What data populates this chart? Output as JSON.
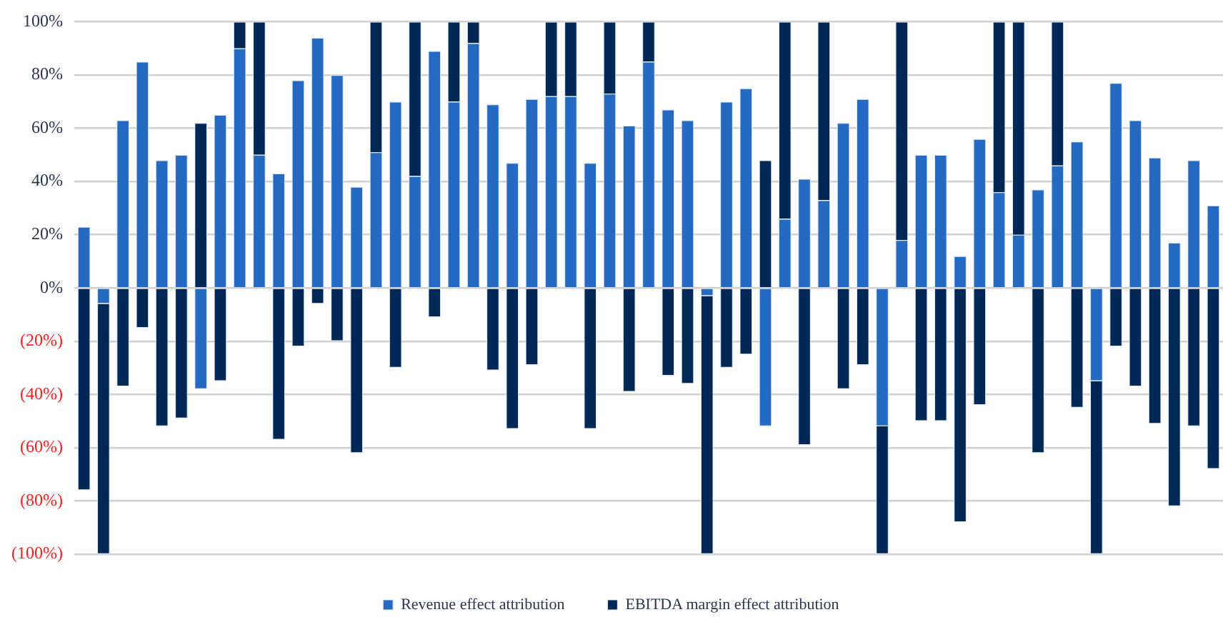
{
  "chart_data": {
    "type": "bar",
    "stacked": true,
    "categories": [
      null,
      null,
      null,
      null,
      null,
      null,
      null,
      null,
      null,
      null,
      null,
      null,
      null,
      null,
      null,
      null,
      null,
      null,
      null,
      null,
      null,
      null,
      null,
      null,
      null,
      null,
      null,
      null,
      null,
      null,
      null,
      null,
      null,
      null,
      null,
      null,
      null,
      null,
      null,
      null,
      null,
      null,
      null,
      null,
      null,
      null,
      null,
      null,
      null,
      null,
      null,
      null,
      null,
      null,
      null,
      null,
      null,
      null,
      null
    ],
    "series": [
      {
        "name": "Revenue effect attribution",
        "color": "#246ac2",
        "values": [
          23,
          -6,
          63,
          85,
          48,
          50,
          -38,
          65,
          90,
          50,
          43,
          78,
          94,
          80,
          38,
          51,
          70,
          42,
          89,
          70,
          92,
          69,
          47,
          71,
          72,
          72,
          47,
          73,
          61,
          85,
          67,
          63,
          -3,
          70,
          75,
          -52,
          26,
          41,
          33,
          62,
          71,
          -52,
          18,
          50,
          50,
          12,
          56,
          36,
          20,
          37,
          46,
          55,
          -35,
          77,
          63,
          49,
          17,
          48,
          31
        ]
      },
      {
        "name": "EBITDA margin effect attribution",
        "color": "#012854",
        "values": [
          -76,
          -94,
          -37,
          -15,
          -52,
          -49,
          62,
          -35,
          10,
          50,
          -57,
          -22,
          -6,
          -20,
          -62,
          49,
          -30,
          58,
          -11,
          30,
          8,
          -31,
          -53,
          -29,
          28,
          28,
          -53,
          27,
          -39,
          15,
          -33,
          -36,
          -97,
          -30,
          -25,
          48,
          74,
          -59,
          67,
          -38,
          -29,
          -48,
          82,
          -50,
          -50,
          -88,
          -44,
          64,
          80,
          -62,
          54,
          -45,
          -65,
          -22,
          -37,
          -51,
          -82,
          -52,
          -68
        ]
      }
    ],
    "ylim": [
      -100,
      100
    ],
    "yticks": [
      {
        "value": -100,
        "label": "(100%)"
      },
      {
        "value": -80,
        "label": "(80%)"
      },
      {
        "value": -60,
        "label": "(60%)"
      },
      {
        "value": -40,
        "label": "(40%)"
      },
      {
        "value": -20,
        "label": "(20%)"
      },
      {
        "value": 0,
        "label": "0%"
      },
      {
        "value": 20,
        "label": "20%"
      },
      {
        "value": 40,
        "label": "40%"
      },
      {
        "value": 60,
        "label": "60%"
      },
      {
        "value": 80,
        "label": "80%"
      },
      {
        "value": 100,
        "label": "100%"
      }
    ],
    "grid": "y",
    "tick_labels": "y",
    "legend": "bottom"
  }
}
